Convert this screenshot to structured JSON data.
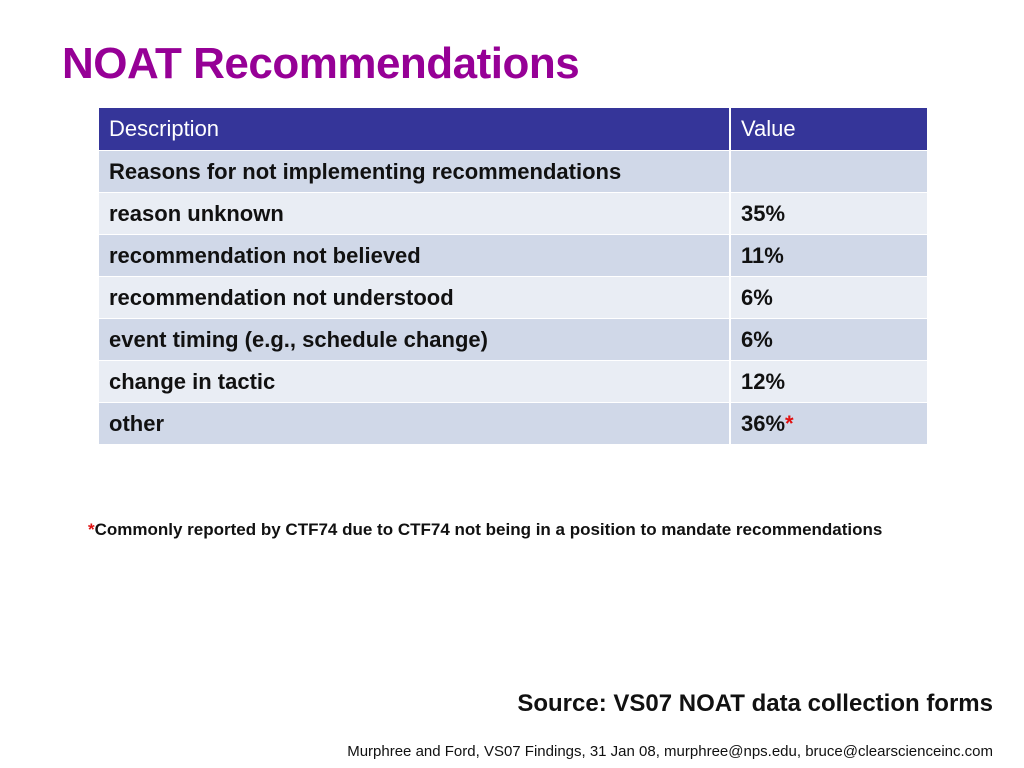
{
  "title": "NOAT Recommendations",
  "table": {
    "headers": [
      "Description",
      "Value"
    ],
    "rows": [
      {
        "description": "Reasons for not implementing recommendations",
        "value": ""
      },
      {
        "description": "reason unknown",
        "value": "35%"
      },
      {
        "description": "recommendation not believed",
        "value": "11%"
      },
      {
        "description": "recommendation not understood",
        "value": "6%"
      },
      {
        "description": "event timing (e.g., schedule change)",
        "value": "6%"
      },
      {
        "description": "change in tactic",
        "value": "12%"
      },
      {
        "description": "other",
        "value": "36%",
        "marker": "*"
      }
    ]
  },
  "footnote": {
    "marker": "*",
    "text": "Commonly reported by CTF74 due to CTF74 not being in a position to mandate recommendations"
  },
  "source": "Source:  VS07 NOAT data collection forms",
  "credits": "Murphree and Ford, VS07 Findings, 31 Jan 08, murphree@nps.edu, bruce@clearscienceinc.com",
  "colors": {
    "title": "#960096",
    "header_bg": "#353599",
    "row_dark": "#d0d8e8",
    "row_light": "#e9edf4",
    "marker": "#e01010"
  }
}
